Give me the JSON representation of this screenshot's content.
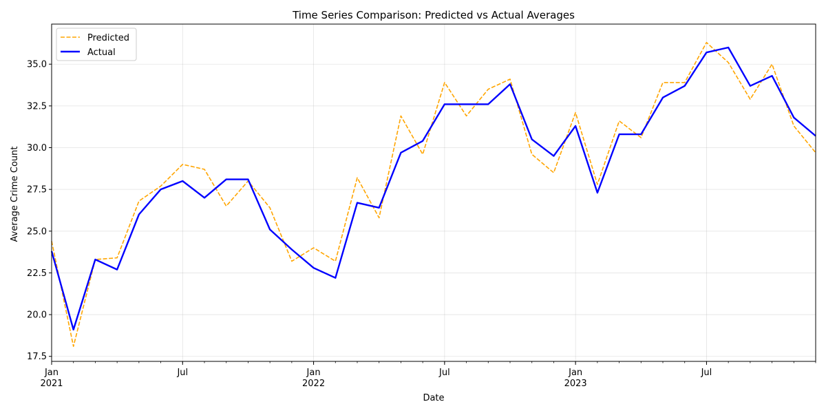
{
  "chart_data": {
    "type": "line",
    "title": "Time Series Comparison: Predicted vs Actual Averages",
    "xlabel": "Date",
    "ylabel": "Average Crime Count",
    "ylim": [
      17.2,
      37.4
    ],
    "xlim": [
      "2021-01",
      "2023-12"
    ],
    "yticks": [
      "17.5",
      "20.0",
      "22.5",
      "25.0",
      "27.5",
      "30.0",
      "32.5",
      "35.0"
    ],
    "ytick_values": [
      17.5,
      20.0,
      22.5,
      25.0,
      27.5,
      30.0,
      32.5,
      35.0
    ],
    "xticks": [
      {
        "date": "2021-01",
        "label": "Jan",
        "sub": "2021"
      },
      {
        "date": "2021-07",
        "label": "Jul",
        "sub": ""
      },
      {
        "date": "2022-01",
        "label": "Jan",
        "sub": "2022"
      },
      {
        "date": "2022-07",
        "label": "Jul",
        "sub": ""
      },
      {
        "date": "2023-01",
        "label": "Jan",
        "sub": "2023"
      },
      {
        "date": "2023-07",
        "label": "Jul",
        "sub": ""
      }
    ],
    "grid": true,
    "legend_position": "top-left",
    "x": [
      "2021-01",
      "2021-02",
      "2021-03",
      "2021-04",
      "2021-05",
      "2021-06",
      "2021-07",
      "2021-08",
      "2021-09",
      "2021-10",
      "2021-11",
      "2021-12",
      "2022-01",
      "2022-02",
      "2022-03",
      "2022-04",
      "2022-05",
      "2022-06",
      "2022-07",
      "2022-08",
      "2022-09",
      "2022-10",
      "2022-11",
      "2022-12",
      "2023-01",
      "2023-02",
      "2023-03",
      "2023-04",
      "2023-05",
      "2023-06",
      "2023-07",
      "2023-08",
      "2023-09",
      "2023-10",
      "2023-11",
      "2023-12"
    ],
    "series": [
      {
        "name": "Predicted",
        "color": "#FFA500",
        "style": "dashed",
        "values": [
          24.4,
          18.1,
          23.3,
          23.4,
          26.8,
          27.7,
          29.0,
          28.7,
          26.5,
          28.0,
          26.4,
          23.2,
          24.0,
          23.2,
          28.2,
          25.8,
          31.9,
          29.6,
          33.9,
          31.9,
          33.5,
          34.1,
          29.6,
          28.5,
          32.1,
          27.8,
          31.6,
          30.6,
          33.9,
          33.9,
          36.3,
          35.1,
          32.9,
          35.0,
          31.3,
          29.7
        ]
      },
      {
        "name": "Actual",
        "color": "#0000FF",
        "style": "solid",
        "values": [
          23.8,
          19.1,
          23.3,
          22.7,
          26.0,
          27.5,
          28.0,
          27.0,
          28.1,
          28.1,
          25.1,
          23.9,
          22.8,
          22.2,
          26.7,
          26.4,
          29.7,
          30.4,
          32.6,
          32.6,
          32.6,
          33.8,
          30.5,
          29.5,
          31.3,
          27.3,
          30.8,
          30.8,
          33.0,
          33.7,
          35.7,
          36.0,
          33.7,
          34.3,
          31.8,
          30.7
        ]
      }
    ]
  }
}
